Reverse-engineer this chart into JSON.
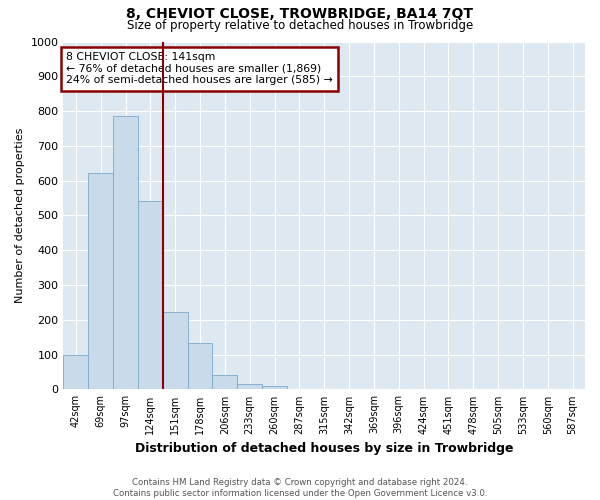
{
  "title": "8, CHEVIOT CLOSE, TROWBRIDGE, BA14 7QT",
  "subtitle": "Size of property relative to detached houses in Trowbridge",
  "xlabel": "Distribution of detached houses by size in Trowbridge",
  "ylabel": "Number of detached properties",
  "footer_line1": "Contains HM Land Registry data © Crown copyright and database right 2024.",
  "footer_line2": "Contains public sector information licensed under the Open Government Licence v3.0.",
  "bin_labels": [
    "42sqm",
    "69sqm",
    "97sqm",
    "124sqm",
    "151sqm",
    "178sqm",
    "206sqm",
    "233sqm",
    "260sqm",
    "287sqm",
    "315sqm",
    "342sqm",
    "369sqm",
    "396sqm",
    "424sqm",
    "451sqm",
    "478sqm",
    "505sqm",
    "533sqm",
    "560sqm",
    "587sqm"
  ],
  "bar_heights": [
    100,
    622,
    787,
    541,
    222,
    133,
    42,
    16,
    10,
    0,
    0,
    0,
    0,
    0,
    0,
    0,
    0,
    0,
    0,
    0,
    0
  ],
  "bar_color": "#c9daea",
  "bar_edge_color": "#7aaac8",
  "vline_position": 3.5,
  "vline_color": "#8b0000",
  "annotation_line1": "8 CHEVIOT CLOSE: 141sqm",
  "annotation_line2": "← 76% of detached houses are smaller (1,869)",
  "annotation_line3": "24% of semi-detached houses are larger (585) →",
  "annotation_box_color": "#8b0000",
  "ylim": [
    0,
    1000
  ],
  "yticks": [
    0,
    100,
    200,
    300,
    400,
    500,
    600,
    700,
    800,
    900,
    1000
  ],
  "bg_color": "#ffffff",
  "plot_bg_color": "#dde8f0"
}
